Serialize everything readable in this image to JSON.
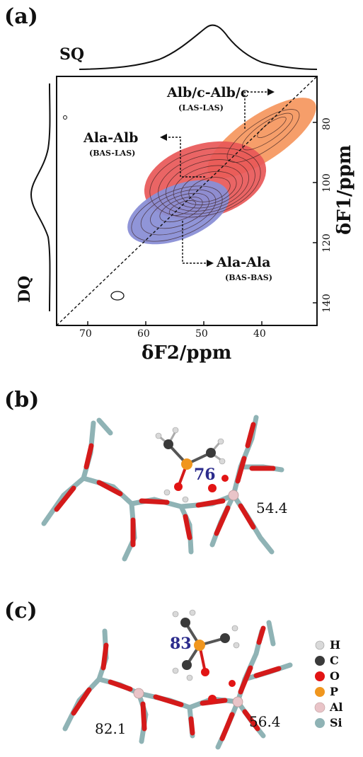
{
  "panel_a": {
    "label": "(a)",
    "sq_label": "SQ",
    "dq_label": "DQ",
    "x_axis_label": "δF2/ppm",
    "y_axis_label": "δF1/ppm",
    "x_ticks": [
      "70",
      "60",
      "50",
      "40"
    ],
    "y_ticks": [
      "80",
      "100",
      "120",
      "140"
    ],
    "annotations": [
      {
        "title": "Alb/c-Alb/c",
        "subtitle": "(LAS-LAS)"
      },
      {
        "title": "Ala-Alb",
        "subtitle": "(BAS-LAS)"
      },
      {
        "title": "Ala-Ala",
        "subtitle": "(BAS-BAS)"
      }
    ],
    "colors": {
      "orange": "#f5935a",
      "red": "#e85858",
      "blue": "#8a8fd6"
    }
  },
  "panel_b": {
    "label": "(b)",
    "shift_p": "76",
    "shift_al": "54.4"
  },
  "panel_c": {
    "label": "(c)",
    "shift_p": "83",
    "shift_al_right": "56.4",
    "shift_al_left": "82.1",
    "legend": [
      {
        "element": "H",
        "color": "#d9d9d9"
      },
      {
        "element": "C",
        "color": "#3a3a3a"
      },
      {
        "element": "O",
        "color": "#e21414"
      },
      {
        "element": "P",
        "color": "#f0961e"
      },
      {
        "element": "Al",
        "color": "#e9c4c8"
      },
      {
        "element": "Si",
        "color": "#8fb3b5"
      }
    ]
  }
}
